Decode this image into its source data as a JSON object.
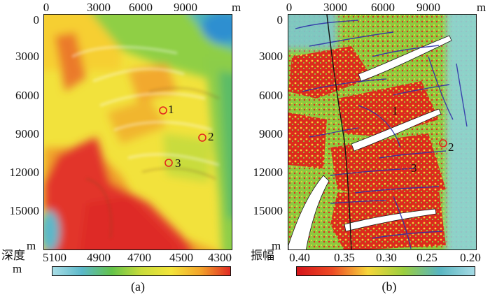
{
  "panel_a": {
    "x_ticks": [
      "0",
      "3000",
      "6000",
      "9000"
    ],
    "x_unit": "m",
    "y_ticks": [
      "0",
      "3000",
      "6000",
      "9000",
      "12000",
      "15000"
    ],
    "y_unit": "m",
    "markers": [
      "1",
      "2",
      "3"
    ],
    "colorbar_label": "深度",
    "colorbar_unit": "m",
    "colorbar_ticks": [
      "5100",
      "4900",
      "4700",
      "4500",
      "4300"
    ],
    "colorbar_colors": [
      "#a8dde6",
      "#5bb8c9",
      "#63c34a",
      "#c9dc3a",
      "#f3e43a",
      "#f3a32a",
      "#e12b23"
    ],
    "caption": "(a)"
  },
  "panel_b": {
    "x_ticks": [
      "0",
      "3000",
      "6000",
      "9000"
    ],
    "x_unit": "m",
    "y_ticks": [
      "0",
      "3000",
      "6000",
      "9000",
      "12000",
      "15000"
    ],
    "y_unit": "m",
    "markers": [
      "1",
      "2",
      "3"
    ],
    "colorbar_label": "振幅",
    "colorbar_ticks": [
      "0.40",
      "0.35",
      "0.30",
      "0.25",
      "0.20"
    ],
    "colorbar_colors": [
      "#d5141a",
      "#ee4a24",
      "#f6d63a",
      "#9bcf3e",
      "#58b5c0",
      "#a6dbe5"
    ],
    "caption": "(b)"
  }
}
